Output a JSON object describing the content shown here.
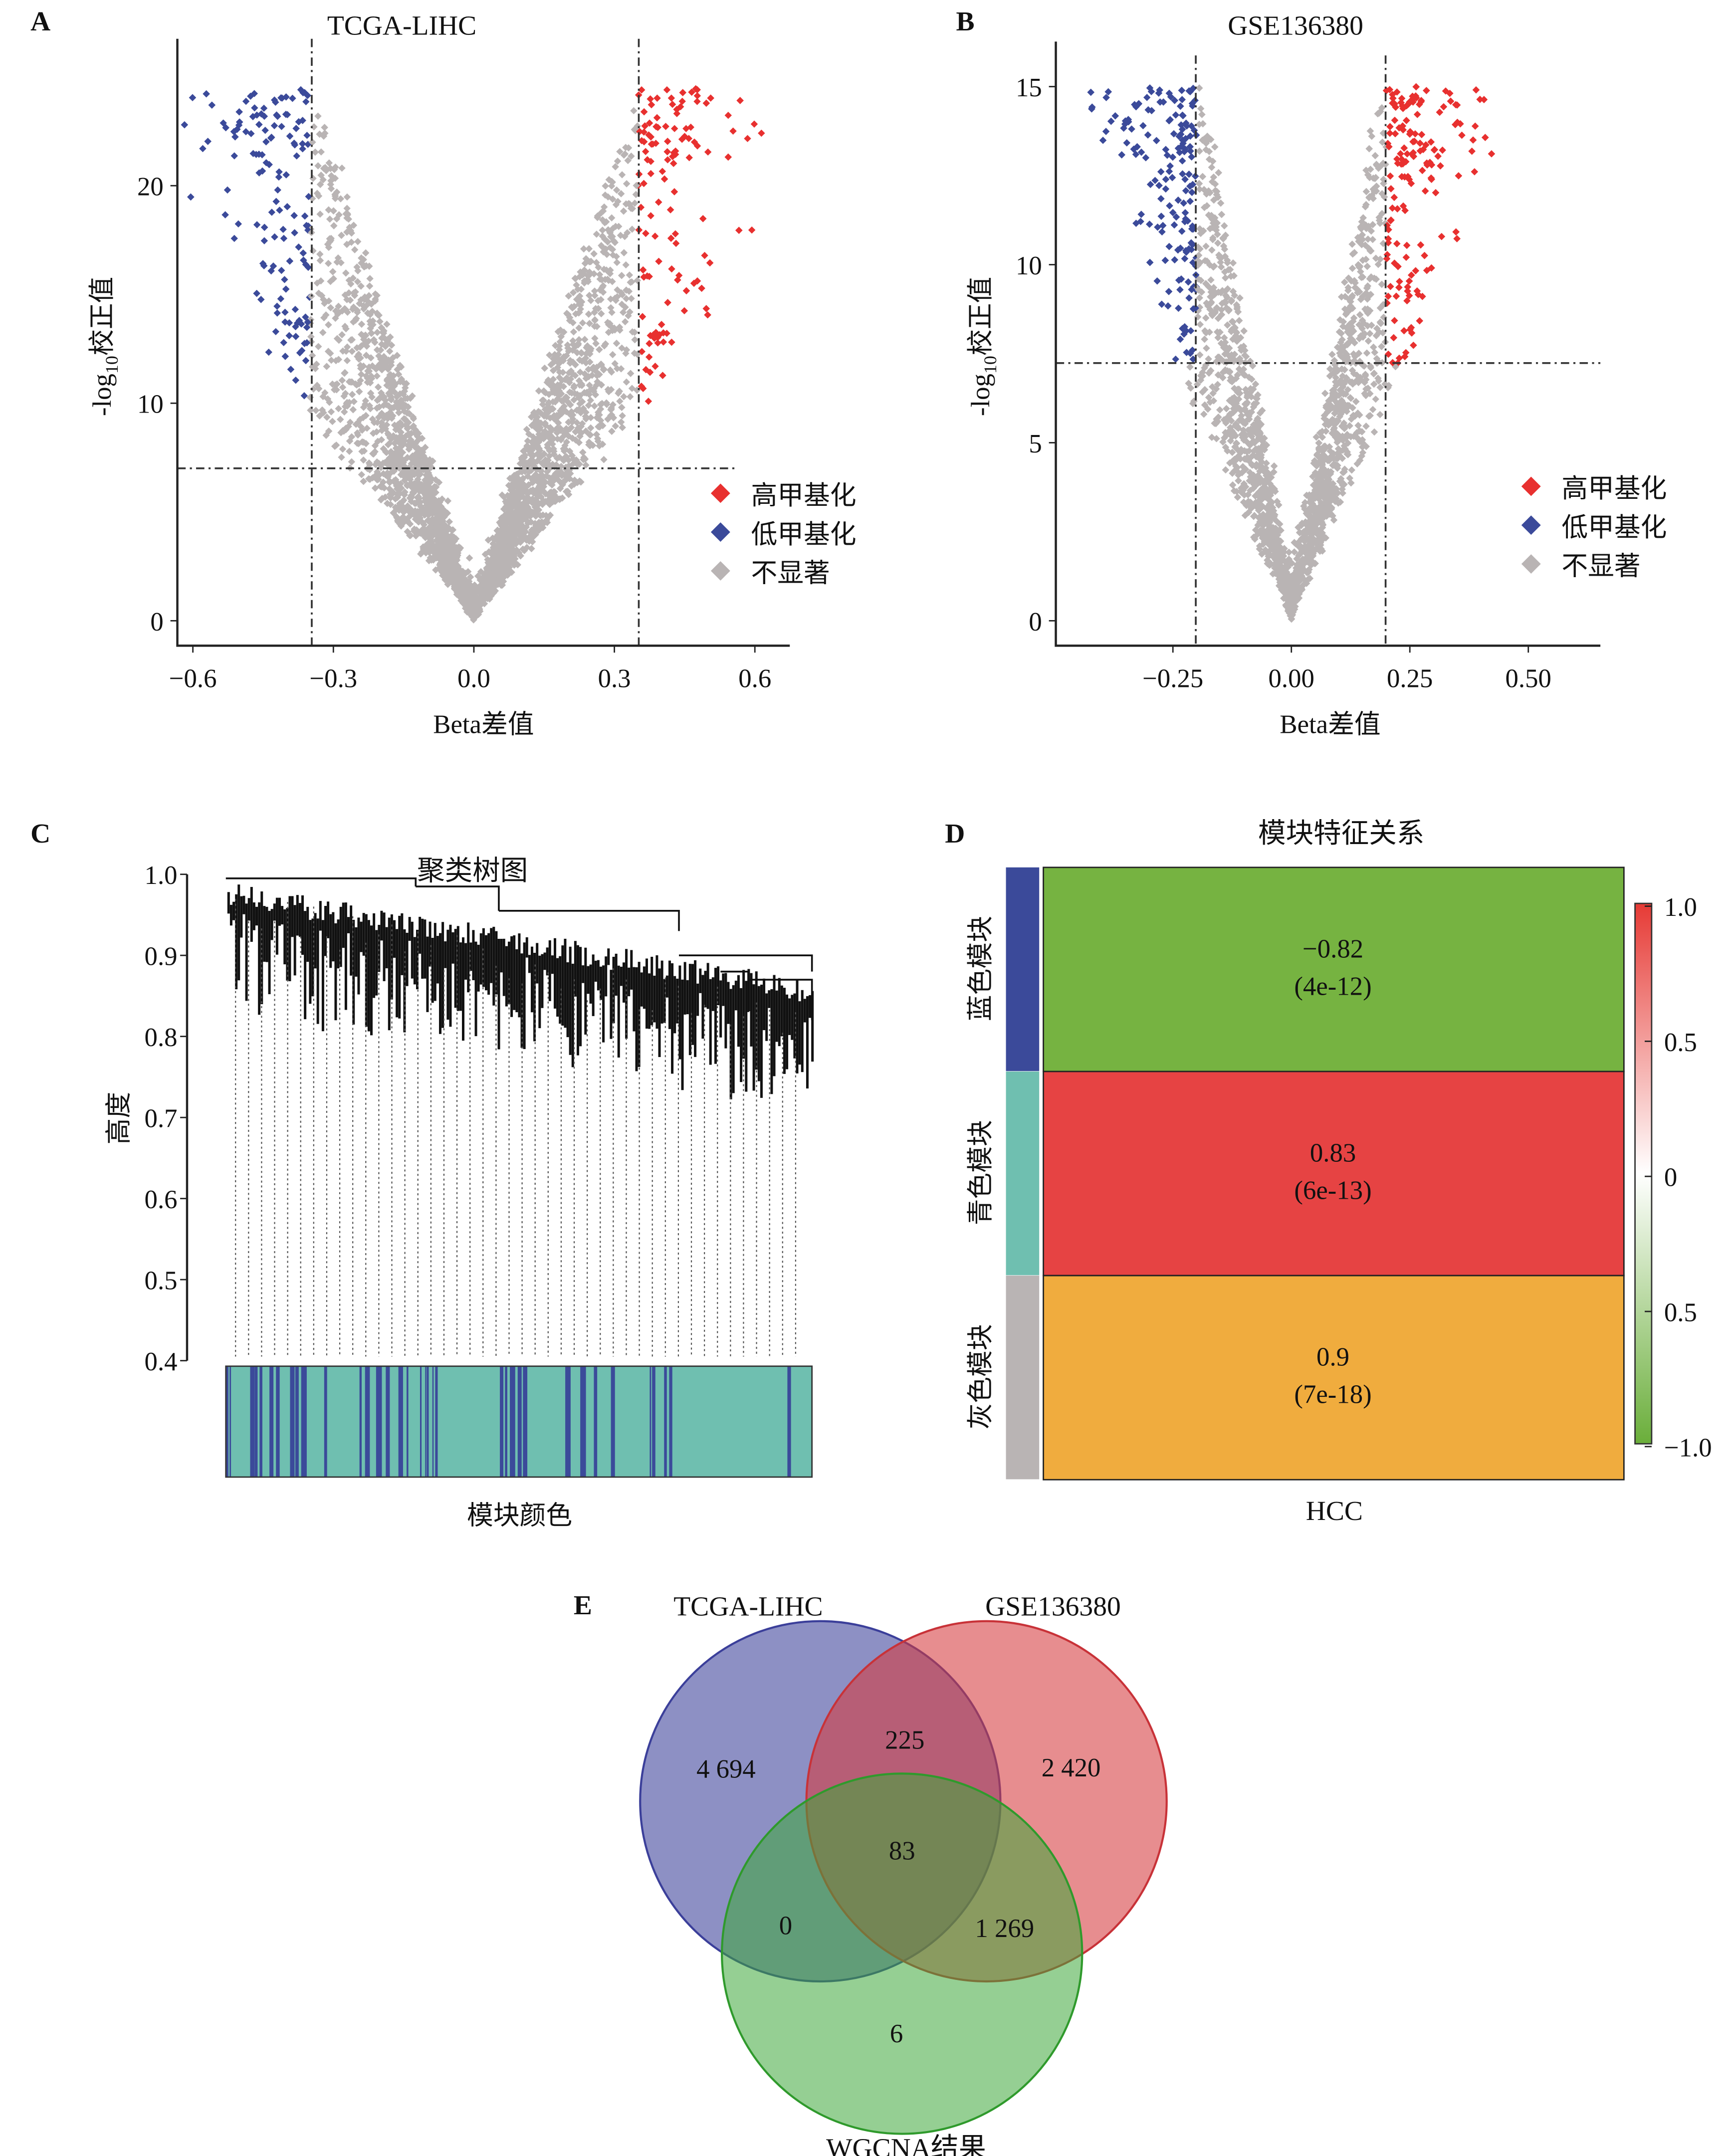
{
  "colors": {
    "high": "#e8302f",
    "low": "#3b4a9a",
    "ns": "#b9b4b4",
    "teal": "#6fbfb0",
    "green_cell": "#76b341",
    "red_cell": "#e64343",
    "orange_cell": "#f0ac3e"
  },
  "chart_data": [
    {
      "panel": "A",
      "type": "scatter",
      "title": "TCGA-LIHC",
      "xlabel": "Beta差值",
      "ylabel": "-log10校正值",
      "xlim": [
        -0.65,
        0.68
      ],
      "ylim": [
        -1,
        27
      ],
      "xticks": [
        "−0.6",
        "−0.3",
        "0.0",
        "0.3",
        "0.6"
      ],
      "xtick_values": [
        -0.6,
        -0.3,
        0.0,
        0.3,
        0.6
      ],
      "yticks": [
        "0",
        "10",
        "20"
      ],
      "ytick_values": [
        0,
        10,
        20
      ],
      "thresholds": {
        "beta": 0.35,
        "neglog10": 7.0
      },
      "legend": [
        "高甲基化",
        "低甲基化",
        "不显著"
      ],
      "legend_position": "right"
    },
    {
      "panel": "B",
      "type": "scatter",
      "title": "GSE136380",
      "xlabel": "Beta差值",
      "ylabel": "-log10校正值",
      "xlim": [
        -0.5,
        0.65
      ],
      "ylim": [
        -0.7,
        16.2
      ],
      "xticks": [
        "−0.25",
        "0.00",
        "0.25",
        "0.50"
      ],
      "xtick_values": [
        -0.25,
        0,
        0.25,
        0.5
      ],
      "yticks": [
        "0",
        "5",
        "10",
        "15"
      ],
      "ytick_values": [
        0,
        5,
        10,
        15
      ],
      "thresholds": {
        "beta": 0.2,
        "neglog10": 7.2
      },
      "legend": [
        "高甲基化",
        "低甲基化",
        "不显著"
      ],
      "legend_position": "right"
    },
    {
      "panel": "C",
      "type": "dendrogram",
      "title": "聚类树图",
      "xlabel": "模块颜色",
      "ylabel": "高度",
      "ylim": [
        0.4,
        1.0
      ],
      "yticks": [
        "1.0",
        "0.9",
        "0.8",
        "0.7",
        "0.6",
        "0.5",
        "0.4"
      ],
      "module_colors": [
        "blue",
        "turquoise"
      ]
    },
    {
      "panel": "D",
      "type": "heatmap",
      "title": "模块特征关系",
      "xlabel": "HCC",
      "rows": [
        {
          "label": "蓝色模块",
          "value": -0.82,
          "value_text": "−0.82",
          "p_text": "(4e-12)"
        },
        {
          "label": "青色模块",
          "value": 0.83,
          "value_text": "0.83",
          "p_text": "(6e-13)"
        },
        {
          "label": "灰色模块",
          "value": 0.9,
          "value_text": "0.9",
          "p_text": "(7e-18)"
        }
      ],
      "colorbar_ticks": [
        "1.0",
        "0.5",
        "0",
        "0.5",
        "−1.0"
      ],
      "colorbar_range": [
        -1.0,
        1.0
      ]
    },
    {
      "panel": "E",
      "type": "venn",
      "sets": [
        "TCGA-LIHC",
        "GSE136380",
        "WGCNA结果"
      ],
      "regions": {
        "tcga_only": "4 694",
        "gse_only": "2 420",
        "tcga_gse": "225",
        "all": "83",
        "tcga_wgcna": "0",
        "gse_wgcna": "1 269",
        "wgcna_only": "6"
      }
    }
  ],
  "panel_labels": [
    "A",
    "B",
    "C",
    "D",
    "E"
  ]
}
